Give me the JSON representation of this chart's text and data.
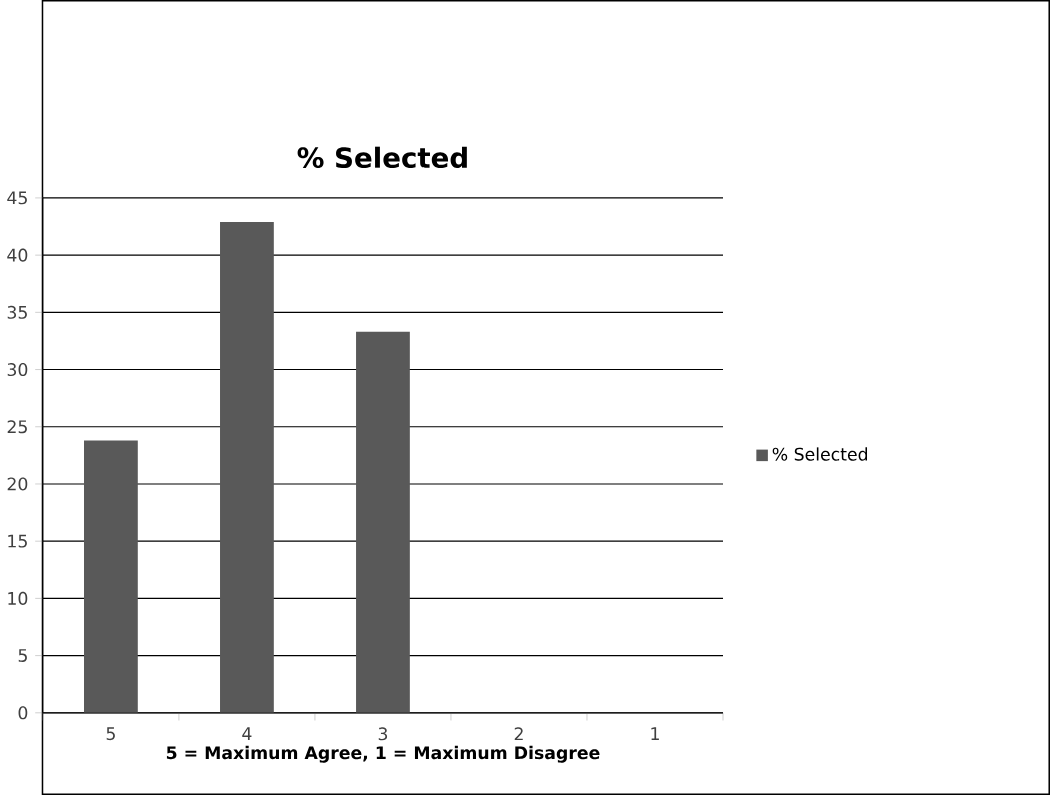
{
  "chart_data": {
    "type": "bar",
    "title": "% Selected",
    "xlabel": "5 = Maximum Agree, 1 = Maximum Disagree",
    "categories": [
      "5",
      "4",
      "3",
      "2",
      "1"
    ],
    "series": [
      {
        "name": "% Selected",
        "color": "#595959",
        "values": [
          23.8,
          42.9,
          33.3,
          0,
          0
        ]
      }
    ],
    "ylim": [
      0,
      45
    ],
    "yticks": [
      0,
      5,
      10,
      15,
      20,
      25,
      30,
      35,
      40,
      45
    ],
    "grid": "y",
    "legend": "right"
  }
}
